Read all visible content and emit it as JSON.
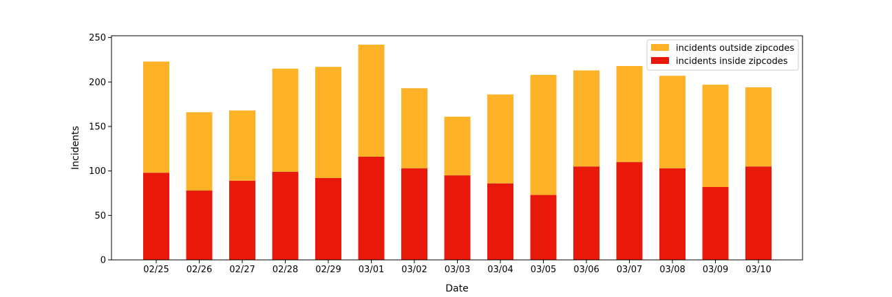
{
  "chart_data": {
    "type": "bar",
    "stacked": true,
    "xlabel": "Date",
    "ylabel": "Incidents",
    "ylim": [
      0,
      252
    ],
    "yticks": [
      0,
      50,
      100,
      150,
      200,
      250
    ],
    "categories": [
      "02/25",
      "02/26",
      "02/27",
      "02/28",
      "02/29",
      "03/01",
      "03/02",
      "03/03",
      "03/04",
      "03/05",
      "03/06",
      "03/07",
      "03/08",
      "03/09",
      "03/10"
    ],
    "series": [
      {
        "name": "incidents inside zipcodes",
        "color": "#e8190b",
        "values": [
          98,
          78,
          89,
          99,
          92,
          116,
          103,
          95,
          86,
          73,
          105,
          110,
          103,
          82,
          105
        ]
      },
      {
        "name": "incidents outside zipcodes",
        "color": "#feb228",
        "values": [
          125,
          88,
          79,
          116,
          125,
          126,
          90,
          66,
          100,
          135,
          108,
          108,
          104,
          115,
          89
        ]
      }
    ],
    "legend_order": [
      "incidents outside zipcodes",
      "incidents inside zipcodes"
    ],
    "legend_position": "top-right",
    "grid": false
  }
}
